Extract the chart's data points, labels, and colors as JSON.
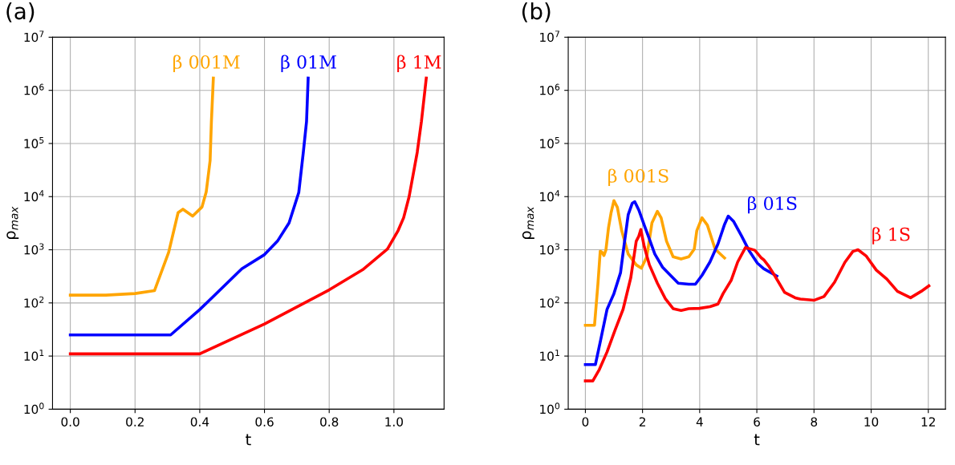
{
  "chart_data": [
    {
      "type": "line",
      "title": "(a)",
      "xlabel": "t",
      "ylabel": "ρ$_{max}$",
      "log": "y",
      "grid": true,
      "legend": false,
      "xlim": [
        -0.055,
        1.155
      ],
      "xticks": [
        {
          "value": 0,
          "label": "0.0"
        },
        0.2,
        0.4,
        0.6,
        0.8,
        {
          "value": 1,
          "label": "1.0"
        }
      ],
      "ylim": [
        1,
        10000000
      ],
      "yticks": [
        {
          "value": 1,
          "label": "10$^{0}$"
        },
        {
          "value": 10,
          "label": "10$^{1}$"
        },
        {
          "value": 100,
          "label": "10$^{2}$"
        },
        {
          "value": 1000,
          "label": "10$^{3}$"
        },
        {
          "value": 10000,
          "label": "10$^{4}$"
        },
        {
          "value": 100000,
          "label": "10$^{5}$"
        },
        {
          "value": 1000000,
          "label": "10$^{6}$"
        },
        {
          "value": 10000000,
          "label": "10$^{7}$"
        }
      ],
      "series": [
        {
          "name": "β 001M",
          "color": "#ffa500",
          "x": [
            0,
            0.11,
            0.2,
            0.26,
            0.304,
            0.333,
            0.348,
            0.378,
            0.407,
            0.42,
            0.432,
            0.436,
            0.442
          ],
          "values": [
            140,
            140,
            150,
            170,
            900,
            5000,
            5800,
            4300,
            6400,
            12300,
            48000,
            260000,
            1700000
          ]
        },
        {
          "name": "β 01M",
          "color": "#0000ff",
          "x": [
            0,
            0.31,
            0.4,
            0.53,
            0.6,
            0.64,
            0.676,
            0.706,
            0.72,
            0.73,
            0.735
          ],
          "values": [
            25,
            25,
            75,
            440,
            810,
            1450,
            3200,
            12000,
            68000,
            260000,
            1700000
          ]
        },
        {
          "name": "β 1M",
          "color": "#ff0000",
          "x": [
            0,
            0.4,
            0.6,
            0.8,
            0.903,
            0.98,
            1.013,
            1.03,
            1.047,
            1.072,
            1.085,
            1.1
          ],
          "values": [
            11,
            11,
            40,
            176,
            420,
            1030,
            2300,
            4000,
            10000,
            68000,
            260000,
            1700000
          ]
        }
      ]
    },
    {
      "type": "line",
      "title": "(b)",
      "xlabel": "t",
      "ylabel": "ρ$_{max}$",
      "log": "y",
      "grid": true,
      "legend": false,
      "xlim": [
        -0.6,
        12.6
      ],
      "xticks": [
        0,
        2,
        4,
        6,
        8,
        10,
        12
      ],
      "ylim": [
        1,
        10000000
      ],
      "yticks": [
        {
          "value": 1,
          "label": "10$^{0}$"
        },
        {
          "value": 10,
          "label": "10$^{1}$"
        },
        {
          "value": 100,
          "label": "10$^{2}$"
        },
        {
          "value": 1000,
          "label": "10$^{3}$"
        },
        {
          "value": 10000,
          "label": "10$^{4}$"
        },
        {
          "value": 100000,
          "label": "10$^{5}$"
        },
        {
          "value": 1000000,
          "label": "10$^{6}$"
        },
        {
          "value": 10000000,
          "label": "10$^{7}$"
        }
      ],
      "series": [
        {
          "name": "β 001S",
          "color": "#ffa500",
          "x": [
            0,
            0.32,
            0.44,
            0.52,
            0.58,
            0.65,
            0.72,
            0.81,
            0.9,
            1.0,
            1.12,
            1.27,
            1.5,
            1.78,
            1.96,
            2.15,
            2.33,
            2.52,
            2.65,
            2.84,
            3.07,
            3.35,
            3.62,
            3.81,
            3.9,
            4.08,
            4.27,
            4.54,
            4.87
          ],
          "values": [
            38,
            38,
            230,
            940,
            900,
            780,
            1000,
            2600,
            5000,
            8400,
            6300,
            2300,
            830,
            520,
            450,
            740,
            3200,
            5300,
            4000,
            1450,
            740,
            670,
            740,
            1030,
            2300,
            4000,
            2900,
            1030,
            700
          ]
        },
        {
          "name": "β 01S",
          "color": "#0000ff",
          "x": [
            0,
            0.35,
            0.53,
            0.76,
            1.0,
            1.23,
            1.36,
            1.5,
            1.64,
            1.73,
            1.87,
            2.06,
            2.24,
            2.43,
            2.7,
            2.98,
            3.25,
            3.62,
            3.85,
            4.08,
            4.36,
            4.64,
            4.87,
            5.0,
            5.19,
            5.47,
            5.74,
            6.02,
            6.24,
            6.7
          ],
          "values": [
            6.9,
            6.9,
            19.5,
            76,
            150,
            370,
            1290,
            4600,
            7500,
            8000,
            5600,
            2900,
            1600,
            830,
            470,
            330,
            235,
            225,
            225,
            330,
            590,
            1290,
            3000,
            4300,
            3400,
            1800,
            940,
            560,
            440,
            320
          ]
        },
        {
          "name": "β 1S",
          "color": "#ff0000",
          "x": [
            0,
            0.26,
            0.49,
            0.76,
            1.04,
            1.32,
            1.59,
            1.78,
            1.87,
            1.94,
            2.06,
            2.24,
            2.52,
            2.8,
            3.07,
            3.35,
            3.62,
            3.99,
            4.36,
            4.64,
            4.82,
            5.1,
            5.33,
            5.6,
            5.74,
            5.93,
            6.16,
            6.24,
            6.42,
            6.65,
            6.97,
            7.34,
            7.52,
            8.0,
            8.35,
            8.72,
            9.08,
            9.36,
            9.54,
            9.82,
            10.18,
            10.55,
            10.92,
            11.38,
            11.75,
            12.02
          ],
          "values": [
            3.4,
            3.4,
            5.6,
            12,
            31,
            76,
            300,
            1450,
            1800,
            2400,
            1150,
            520,
            235,
            120,
            78,
            72,
            78,
            79,
            85,
            95,
            150,
            265,
            590,
            1100,
            1050,
            980,
            700,
            650,
            490,
            310,
            158,
            125,
            118,
            112,
            132,
            245,
            580,
            930,
            1000,
            770,
            415,
            280,
            165,
            125,
            165,
            210
          ]
        }
      ]
    }
  ]
}
